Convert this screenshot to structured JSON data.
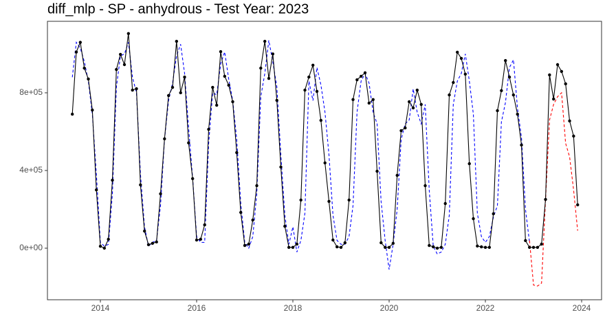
{
  "chart_data": {
    "type": "line",
    "title": "diff_mlp - SP - anhydrous - Test Year: 2023",
    "x": [
      2013.417,
      2013.5,
      2013.583,
      2013.667,
      2013.75,
      2013.833,
      2013.917,
      2014,
      2014.083,
      2014.167,
      2014.25,
      2014.333,
      2014.417,
      2014.5,
      2014.583,
      2014.667,
      2014.75,
      2014.833,
      2014.917,
      2015,
      2015.083,
      2015.167,
      2015.25,
      2015.333,
      2015.417,
      2015.5,
      2015.583,
      2015.667,
      2015.75,
      2015.833,
      2015.917,
      2016,
      2016.083,
      2016.167,
      2016.25,
      2016.333,
      2016.417,
      2016.5,
      2016.583,
      2016.667,
      2016.75,
      2016.833,
      2016.917,
      2017,
      2017.083,
      2017.167,
      2017.25,
      2017.333,
      2017.417,
      2017.5,
      2017.583,
      2017.667,
      2017.75,
      2017.833,
      2017.917,
      2018,
      2018.083,
      2018.167,
      2018.25,
      2018.333,
      2018.417,
      2018.5,
      2018.583,
      2018.667,
      2018.75,
      2018.833,
      2018.917,
      2019,
      2019.083,
      2019.167,
      2019.25,
      2019.333,
      2019.417,
      2019.5,
      2019.583,
      2019.667,
      2019.75,
      2019.833,
      2019.917,
      2020,
      2020.083,
      2020.167,
      2020.25,
      2020.333,
      2020.417,
      2020.5,
      2020.583,
      2020.667,
      2020.75,
      2020.833,
      2020.917,
      2021,
      2021.083,
      2021.167,
      2021.25,
      2021.333,
      2021.417,
      2021.5,
      2021.583,
      2021.667,
      2021.75,
      2021.833,
      2021.917,
      2022,
      2022.083,
      2022.167,
      2022.25,
      2022.333,
      2022.417,
      2022.5,
      2022.583,
      2022.667,
      2022.75,
      2022.833,
      2022.917,
      2023,
      2023.083,
      2023.167,
      2023.25,
      2023.333,
      2023.417,
      2023.5,
      2023.583,
      2023.667,
      2023.75,
      2023.833,
      2023.917
    ],
    "series": [
      {
        "color": "#0000ff",
        "dashed": true,
        "points": false,
        "values": [
          880000,
          1060000,
          1030000,
          960000,
          860000,
          690000,
          380000,
          30000,
          10000,
          20000,
          280000,
          830000,
          990000,
          1000000,
          1060000,
          880000,
          800000,
          380000,
          110000,
          10000,
          30000,
          40000,
          220000,
          560000,
          760000,
          850000,
          990000,
          1050000,
          900000,
          620000,
          360000,
          60000,
          30000,
          30000,
          540000,
          800000,
          790000,
          950000,
          1010000,
          870000,
          760000,
          560000,
          230000,
          30000,
          0,
          60000,
          280000,
          780000,
          900000,
          1070000,
          960000,
          830000,
          480000,
          170000,
          20000,
          110000,
          -20000,
          40000,
          180000,
          860000,
          760000,
          930000,
          840000,
          700000,
          480000,
          170000,
          40000,
          20000,
          20000,
          60000,
          220000,
          700000,
          860000,
          900000,
          850000,
          700000,
          640000,
          240000,
          40000,
          -110000,
          20000,
          200000,
          560000,
          640000,
          660000,
          820000,
          700000,
          640000,
          740000,
          300000,
          10000,
          -30000,
          -20000,
          20000,
          170000,
          740000,
          860000,
          900000,
          1000000,
          860000,
          690000,
          180000,
          60000,
          30000,
          60000,
          160000,
          220000,
          650000,
          750000,
          930000,
          970000,
          720000,
          570000,
          200000,
          30000,
          null,
          null,
          null,
          null,
          null,
          null,
          null,
          null,
          null,
          null,
          null,
          null
        ]
      },
      {
        "color": "#ff0000",
        "dashed": true,
        "points": false,
        "values": [
          null,
          null,
          null,
          null,
          null,
          null,
          null,
          null,
          null,
          null,
          null,
          null,
          null,
          null,
          null,
          null,
          null,
          null,
          null,
          null,
          null,
          null,
          null,
          null,
          null,
          null,
          null,
          null,
          null,
          null,
          null,
          null,
          null,
          null,
          null,
          null,
          null,
          null,
          null,
          null,
          null,
          null,
          null,
          null,
          null,
          null,
          null,
          null,
          null,
          null,
          null,
          null,
          null,
          null,
          null,
          null,
          null,
          null,
          null,
          null,
          null,
          null,
          null,
          null,
          null,
          null,
          null,
          null,
          null,
          null,
          null,
          null,
          null,
          null,
          null,
          null,
          null,
          null,
          null,
          null,
          null,
          null,
          null,
          null,
          null,
          null,
          null,
          null,
          null,
          null,
          null,
          null,
          null,
          null,
          null,
          null,
          null,
          null,
          null,
          null,
          null,
          null,
          null,
          null,
          null,
          null,
          null,
          null,
          null,
          null,
          null,
          null,
          null,
          null,
          39000,
          -190000,
          -195000,
          -180000,
          250000,
          660000,
          740000,
          780000,
          800000,
          540000,
          470000,
          300000,
          90000
        ]
      },
      {
        "color": "#000000",
        "dashed": false,
        "points": true,
        "values": [
          690000,
          1010000,
          1060000,
          927000,
          871000,
          711000,
          300000,
          10000,
          0,
          46000,
          350000,
          920000,
          998000,
          945000,
          1105000,
          814000,
          821000,
          326000,
          88000,
          18000,
          25000,
          32000,
          280000,
          563000,
          786000,
          828000,
          1065000,
          800000,
          881000,
          542000,
          358000,
          42000,
          46000,
          120000,
          612000,
          828000,
          736000,
          1012000,
          885000,
          839000,
          754000,
          492000,
          184000,
          14000,
          21000,
          145000,
          322000,
          927000,
          1065000,
          874000,
          1000000,
          761000,
          418000,
          113000,
          4000,
          4000,
          21000,
          248000,
          814000,
          881000,
          942000,
          807000,
          658000,
          439000,
          241000,
          42000,
          7000,
          4000,
          28000,
          248000,
          765000,
          867000,
          885000,
          903000,
          747000,
          765000,
          396000,
          28000,
          4000,
          4000,
          25000,
          375000,
          605000,
          619000,
          754000,
          722000,
          814000,
          740000,
          322000,
          14000,
          7000,
          0,
          4000,
          230000,
          789000,
          853000,
          1009000,
          977000,
          896000,
          435000,
          152000,
          11000,
          7000,
          4000,
          4000,
          177000,
          708000,
          811000,
          966000,
          881000,
          789000,
          690000,
          531000,
          39000,
          4000,
          4000,
          4000,
          21000,
          251000,
          892000,
          768000,
          945000,
          910000,
          846000,
          655000,
          577000,
          223000
        ]
      }
    ],
    "xlim": [
      2012.9,
      2024.414
    ],
    "xticks": [
      2014,
      2016,
      2018,
      2020,
      2022,
      2024
    ],
    "ylim": [
      -265500,
      1168000
    ],
    "yticks": [
      {
        "value": 0,
        "label": "0e+00"
      },
      {
        "value": 400000,
        "label": "4e+05"
      },
      {
        "value": 800000,
        "label": "8e+05"
      }
    ],
    "grid": false
  }
}
